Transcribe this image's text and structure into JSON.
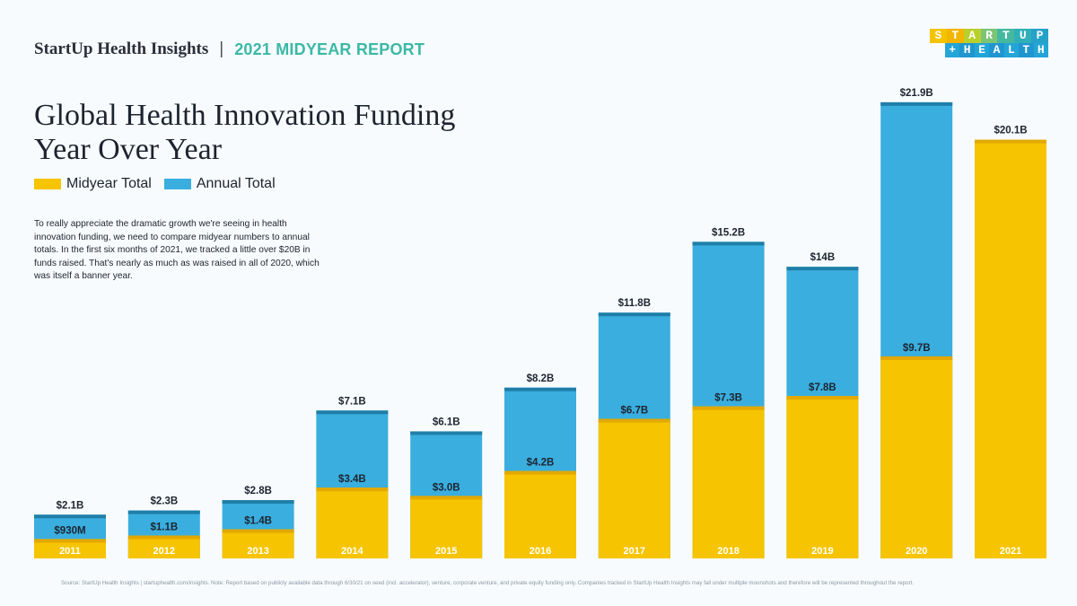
{
  "header": {
    "brand": "StartUp Health Insights",
    "separator": "|",
    "report": "2021 MIDYEAR REPORT"
  },
  "logo": {
    "line1": [
      "S",
      "T",
      "A",
      "R",
      "T",
      "U",
      "P"
    ],
    "line2": [
      "+",
      "H",
      "E",
      "A",
      "L",
      "T",
      "H"
    ]
  },
  "description": "To really appreciate the dramatic growth we're seeing in health innovation funding, we need to compare midyear numbers to annual totals. In the first six months of 2021, we tracked a little over $20B in funds raised. That's nearly as much as was raised in all of 2020, which was itself a banner year.",
  "source": "Source: StartUp Health Insights | startuphealth.com/insights. Note: Report based on publicly available data through 6/30/21 on seed (incl. accelerator), venture, corporate venture, and private equity funding only. Companies tracked in StartUp Health Insights may fall under multiple moonshots and therefore will be represented throughout the report.",
  "colors": {
    "midyear": "#f6c400",
    "annual": "#3aaedf",
    "annual_cap": "#1f7fa8",
    "midyear_cap": "#e2a800"
  },
  "chart_data": {
    "type": "bar",
    "title_line1": "Global Health Innovation Funding",
    "title_line2": "Year Over Year",
    "stacked_overlap": true,
    "units": "USD billions",
    "ylim": [
      0,
      22
    ],
    "categories": [
      "2011",
      "2012",
      "2013",
      "2014",
      "2015",
      "2016",
      "2017",
      "2018",
      "2019",
      "2020",
      "2021"
    ],
    "series": [
      {
        "name": "Midyear Total",
        "values": [
          0.93,
          1.1,
          1.4,
          3.4,
          3.0,
          4.2,
          6.7,
          7.3,
          7.8,
          9.7,
          20.1
        ],
        "labels": [
          "$930M",
          "$1.1B",
          "$1.4B",
          "$3.4B",
          "$3.0B",
          "$4.2B",
          "$6.7B",
          "$7.3B",
          "$7.8B",
          "$9.7B",
          "$20.1B"
        ]
      },
      {
        "name": "Annual Total",
        "values": [
          2.1,
          2.3,
          2.8,
          7.1,
          6.1,
          8.2,
          11.8,
          15.2,
          14.0,
          21.9,
          null
        ],
        "labels": [
          "$2.1B",
          "$2.3B",
          "$2.8B",
          "$7.1B",
          "$6.1B",
          "$8.2B",
          "$11.8B",
          "$15.2B",
          "$14B",
          "$21.9B",
          ""
        ]
      }
    ]
  }
}
